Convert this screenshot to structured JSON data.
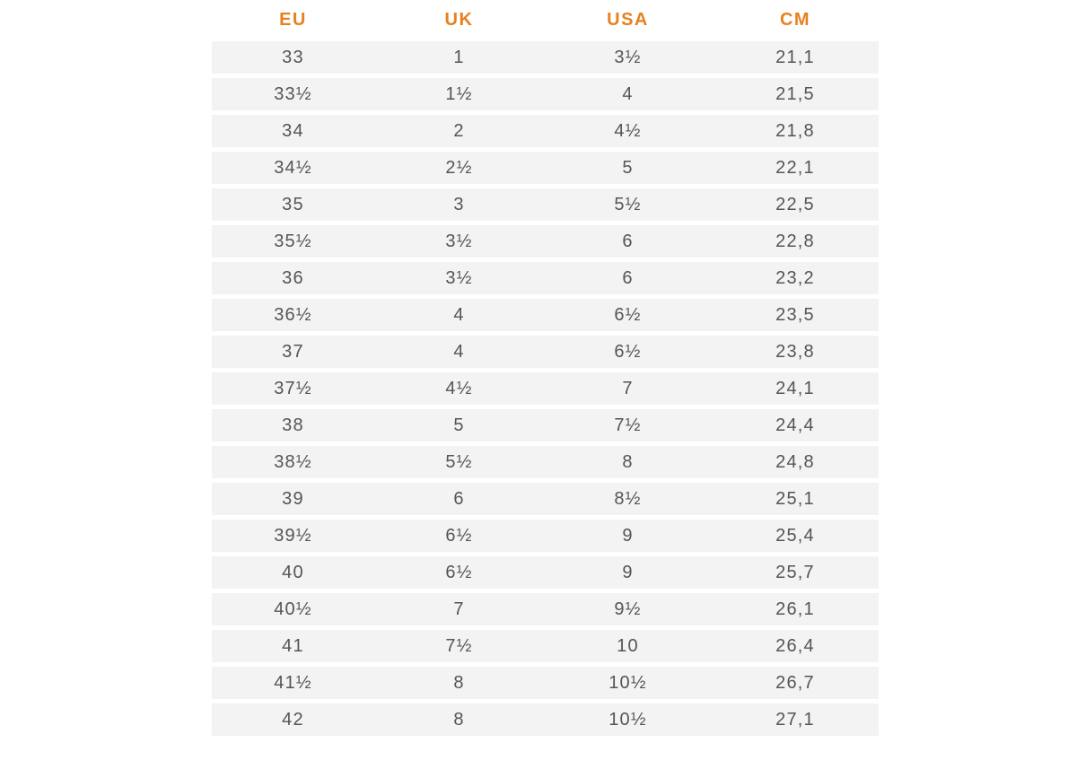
{
  "colors": {
    "header": "#e8801e",
    "row_background": "#f3f3f3",
    "cell_text": "#555555"
  },
  "table": {
    "headers": [
      "EU",
      "UK",
      "USA",
      "CM"
    ],
    "rows": [
      [
        "33",
        "1",
        "3½",
        "21,1"
      ],
      [
        "33½",
        "1½",
        "4",
        "21,5"
      ],
      [
        "34",
        "2",
        "4½",
        "21,8"
      ],
      [
        "34½",
        "2½",
        "5",
        "22,1"
      ],
      [
        "35",
        "3",
        "5½",
        "22,5"
      ],
      [
        "35½",
        "3½",
        "6",
        "22,8"
      ],
      [
        "36",
        "3½",
        "6",
        "23,2"
      ],
      [
        "36½",
        "4",
        "6½",
        "23,5"
      ],
      [
        "37",
        "4",
        "6½",
        "23,8"
      ],
      [
        "37½",
        "4½",
        "7",
        "24,1"
      ],
      [
        "38",
        "5",
        "7½",
        "24,4"
      ],
      [
        "38½",
        "5½",
        "8",
        "24,8"
      ],
      [
        "39",
        "6",
        "8½",
        "25,1"
      ],
      [
        "39½",
        "6½",
        "9",
        "25,4"
      ],
      [
        "40",
        "6½",
        "9",
        "25,7"
      ],
      [
        "40½",
        "7",
        "9½",
        "26,1"
      ],
      [
        "41",
        "7½",
        "10",
        "26,4"
      ],
      [
        "41½",
        "8",
        "10½",
        "26,7"
      ],
      [
        "42",
        "8",
        "10½",
        "27,1"
      ]
    ]
  }
}
